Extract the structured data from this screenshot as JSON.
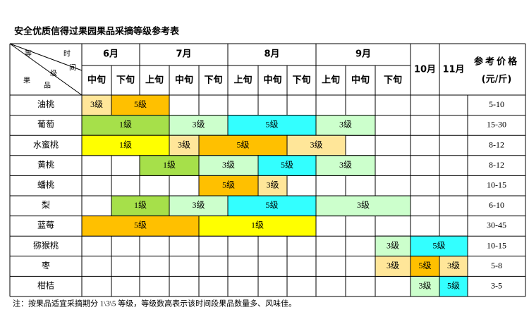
{
  "title": "安全优质信得过果园果品采摘等级参考表",
  "table": {
    "corner": [
      "等",
      "时",
      "间",
      "级",
      "果",
      "品"
    ],
    "months": [
      {
        "label": "6月",
        "periods": [
          "中旬",
          "下旬"
        ]
      },
      {
        "label": "7月",
        "periods": [
          "上旬",
          "中旬",
          "下旬"
        ]
      },
      {
        "label": "8月",
        "periods": [
          "上旬",
          "中旬",
          "下旬"
        ]
      },
      {
        "label": "9月",
        "periods": [
          "上旬",
          "中旬",
          "下旬"
        ]
      }
    ],
    "single_months": [
      "10月",
      "11月"
    ],
    "price_header": [
      "参考价格",
      "(元/斤)"
    ],
    "rows": [
      {
        "fruit": "油桃",
        "price": "5-10",
        "segments": [
          {
            "grade": "3级",
            "start": 0,
            "span": 1,
            "color": "#ffe699"
          },
          {
            "grade": "5级",
            "start": 1,
            "span": 2,
            "color": "#ffc000"
          }
        ]
      },
      {
        "fruit": "葡萄",
        "price": "15-30",
        "segments": [
          {
            "grade": "1级",
            "start": 0,
            "span": 3,
            "color": "#a6e04a"
          },
          {
            "grade": "3级",
            "start": 3,
            "span": 2,
            "color": "#ccffcc"
          },
          {
            "grade": "5级",
            "start": 5,
            "span": 3,
            "color": "#33ffff"
          },
          {
            "grade": "3级",
            "start": 8,
            "span": 2,
            "color": "#ccffcc"
          }
        ]
      },
      {
        "fruit": "水蜜桃",
        "price": "8-12",
        "segments": [
          {
            "grade": "1级",
            "start": 0,
            "span": 3,
            "color": "#ffff00"
          },
          {
            "grade": "3级",
            "start": 3,
            "span": 1,
            "color": "#ffe699"
          },
          {
            "grade": "5级",
            "start": 4,
            "span": 3,
            "color": "#ffc000"
          },
          {
            "grade": "3级",
            "start": 7,
            "span": 2,
            "color": "#ffe699"
          }
        ]
      },
      {
        "fruit": "黄桃",
        "price": "8-12",
        "segments": [
          {
            "grade": "1级",
            "start": 2,
            "span": 2,
            "color": "#a6e04a"
          },
          {
            "grade": "3级",
            "start": 4,
            "span": 2,
            "color": "#ccffcc"
          },
          {
            "grade": "5级",
            "start": 6,
            "span": 2,
            "color": "#33ffff"
          },
          {
            "grade": "3级",
            "start": 8,
            "span": 2,
            "color": "#ccffcc"
          }
        ]
      },
      {
        "fruit": "蟠桃",
        "price": "10-15",
        "segments": [
          {
            "grade": "5级",
            "start": 4,
            "span": 2,
            "color": "#ffc000"
          },
          {
            "grade": "3级",
            "start": 6,
            "span": 1,
            "color": "#ffe699"
          }
        ]
      },
      {
        "fruit": "梨",
        "price": "6-10",
        "segments": [
          {
            "grade": "1级",
            "start": 1,
            "span": 2,
            "color": "#a6e04a"
          },
          {
            "grade": "3级",
            "start": 3,
            "span": 2,
            "color": "#ccffcc"
          },
          {
            "grade": "5级",
            "start": 5,
            "span": 3,
            "color": "#33ffff"
          },
          {
            "grade": "3级",
            "start": 8,
            "span": 3,
            "color": "#ccffcc"
          }
        ]
      },
      {
        "fruit": "蓝莓",
        "price": "30-45",
        "segments": [
          {
            "grade": "5级",
            "start": 0,
            "span": 4,
            "color": "#ffc000"
          },
          {
            "grade": "1级",
            "start": 4,
            "span": 4,
            "color": "#ffff00"
          }
        ]
      },
      {
        "fruit": "猕猴桃",
        "price": "10-15",
        "segments": [
          {
            "grade": "3级",
            "start": 10,
            "span": 1,
            "color": "#ccffcc"
          },
          {
            "grade": "5级",
            "start": 11,
            "span": 2,
            "color": "#33ffff"
          }
        ]
      },
      {
        "fruit": "枣",
        "price": "5-8",
        "segments": [
          {
            "grade": "3级",
            "start": 10,
            "span": 1,
            "color": "#ffe699"
          },
          {
            "grade": "5级",
            "start": 11,
            "span": 1,
            "color": "#ffc000"
          },
          {
            "grade": "3级",
            "start": 12,
            "span": 1,
            "color": "#ffe699"
          }
        ]
      },
      {
        "fruit": "柑桔",
        "price": "3-5",
        "segments": [
          {
            "grade": "3级",
            "start": 11,
            "span": 1,
            "color": "#ccffcc"
          },
          {
            "grade": "5级",
            "start": 12,
            "span": 1,
            "color": "#33ffff"
          }
        ]
      }
    ]
  },
  "note": "注：按果品适宜采摘期分 1\\3\\5 等级，等级数高表示该时间段果品数量多、风味佳。"
}
